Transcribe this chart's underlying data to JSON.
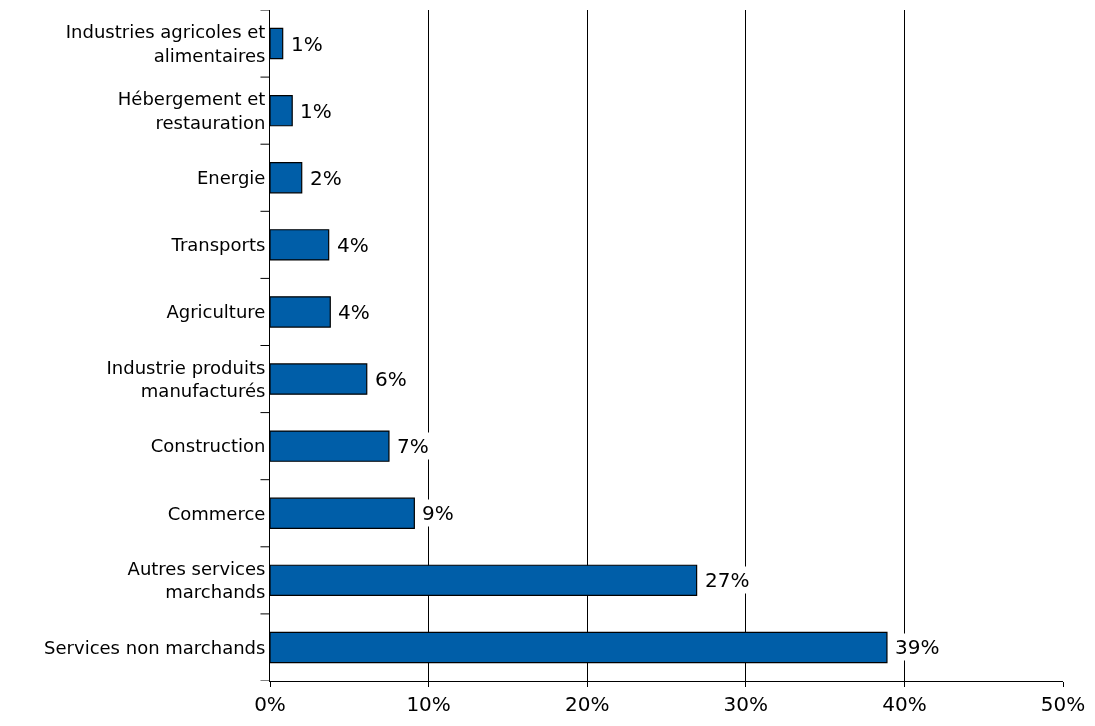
{
  "chart_data": {
    "type": "bar",
    "orientation": "horizontal",
    "categories": [
      "Industries agricoles et\nalimentaires",
      "Hébergement et\nrestauration",
      "Energie",
      "Transports",
      "Agriculture",
      "Industrie produits\nmanufacturés",
      "Construction",
      "Commerce",
      "Autres services\nmarchands",
      "Services non marchands"
    ],
    "values": [
      0.8,
      1.4,
      2.0,
      3.7,
      3.8,
      6.1,
      7.5,
      9.1,
      26.9,
      38.9
    ],
    "value_labels": [
      "1%",
      "1%",
      "2%",
      "4%",
      "4%",
      "6%",
      "7%",
      "9%",
      "27%",
      "39%"
    ],
    "color": "#005ea8",
    "xlim": [
      0,
      50
    ],
    "xticks": [
      {
        "value": 0,
        "label": "0%"
      },
      {
        "value": 10,
        "label": "10%"
      },
      {
        "value": 20,
        "label": "20%"
      },
      {
        "value": 30,
        "label": "30%"
      },
      {
        "value": 40,
        "label": "40%"
      },
      {
        "value": 50,
        "label": "50%"
      }
    ],
    "grid": "x"
  }
}
